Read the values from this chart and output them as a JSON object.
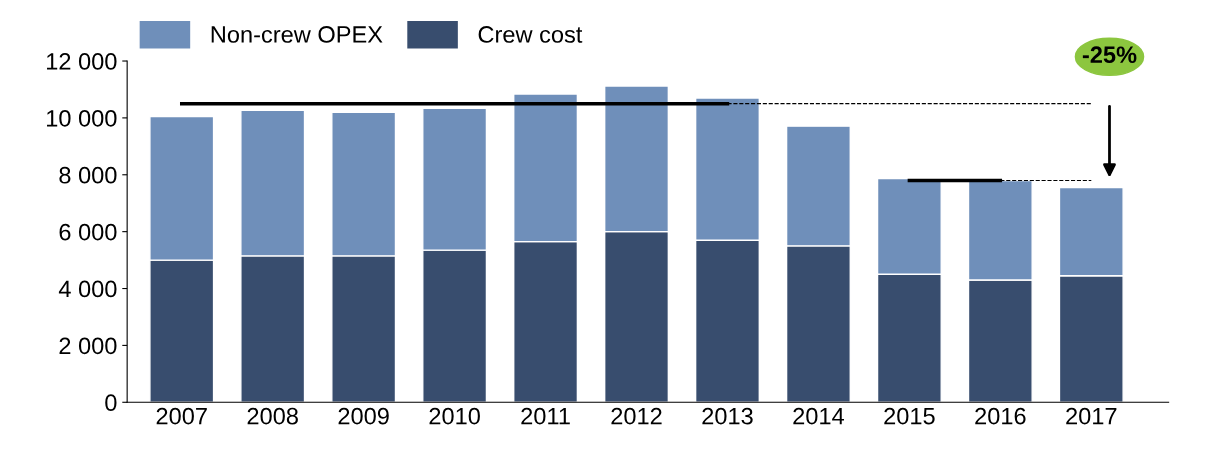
{
  "chart_data": {
    "type": "bar",
    "stacked": true,
    "categories": [
      "2007",
      "2008",
      "2009",
      "2010",
      "2011",
      "2012",
      "2013",
      "2014",
      "2015",
      "2016",
      "2017"
    ],
    "series": [
      {
        "name": "Crew cost",
        "color": "#384d6e",
        "values": [
          5000,
          5150,
          5150,
          5350,
          5650,
          6000,
          5700,
          5500,
          4500,
          4300,
          4450
        ]
      },
      {
        "name": "Non-crew OPEX",
        "color": "#6f8fba",
        "values": [
          5050,
          5120,
          5050,
          4990,
          5190,
          5120,
          5000,
          4210,
          3370,
          3500,
          3100
        ]
      },
      {
        "type": "line",
        "color": "#000000",
        "line_style": "solid",
        "values": [
          10500,
          10500,
          10500,
          10500,
          10500,
          10500,
          10500,
          null,
          null,
          null,
          null
        ]
      },
      {
        "type": "line",
        "color": "#000000",
        "line_style": "dashed",
        "values": [
          null,
          null,
          null,
          null,
          null,
          null,
          10500,
          10500,
          10500,
          10500,
          10500
        ]
      },
      {
        "type": "line",
        "color": "#000000",
        "line_style": "solid",
        "values": [
          null,
          null,
          null,
          null,
          null,
          null,
          null,
          null,
          7800,
          7800,
          null
        ]
      },
      {
        "type": "line",
        "color": "#000000",
        "line_style": "dashed",
        "values": [
          null,
          null,
          null,
          null,
          null,
          null,
          null,
          null,
          null,
          7800,
          7800
        ]
      }
    ],
    "ylim": [
      0,
      12000
    ],
    "yticks": [
      0,
      {
        "value": 2000,
        "label": "2 000"
      },
      {
        "value": 4000,
        "label": "4 000"
      },
      {
        "value": 6000,
        "label": "6 000"
      },
      {
        "value": 8000,
        "label": "8 000"
      },
      {
        "value": 10000,
        "label": "10 000"
      },
      {
        "value": 12000,
        "label": "12 000"
      }
    ],
    "annotations": [
      {
        "text": "-25%",
        "x": "2017",
        "y": 10500
      }
    ],
    "grid": false,
    "legend": "top left"
  }
}
